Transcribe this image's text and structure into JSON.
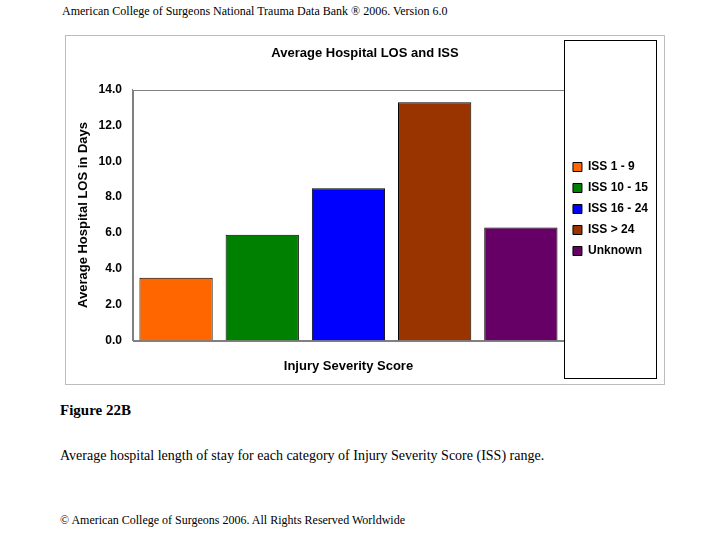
{
  "header": "American College of Surgeons National Trauma Data Bank ® 2006. Version 6.0",
  "chart_data": {
    "type": "bar",
    "title": "Average Hospital LOS and ISS",
    "x_label": "Injury Severity Score",
    "y_label": "Average Hospital LOS in Days",
    "categories": [
      "ISS 1 - 9",
      "ISS 10 - 15",
      "ISS 16 - 24",
      "ISS > 24",
      "Unknown"
    ],
    "values": [
      3.5,
      5.9,
      8.5,
      13.3,
      6.3
    ],
    "colors": [
      "#ff6600",
      "#008000",
      "#0000ff",
      "#993300",
      "#660066"
    ],
    "ylim": [
      0,
      14
    ],
    "yticks": [
      {
        "value": 0,
        "label": "0.0"
      },
      {
        "value": 2,
        "label": "2.0"
      },
      {
        "value": 4,
        "label": "4.0"
      },
      {
        "value": 6,
        "label": "6.0"
      },
      {
        "value": 8,
        "label": "8.0"
      },
      {
        "value": 10,
        "label": "10.0"
      },
      {
        "value": 12,
        "label": "12.0"
      },
      {
        "value": 14,
        "label": "14.0"
      }
    ],
    "grid": false,
    "legend": "right",
    "tick_labels": "y"
  },
  "figure_label": "Figure 22B",
  "caption": "Average hospital length of stay for each category of Injury Severity Score (ISS) range.",
  "copyright": "© American College of Surgeons 2006. All Rights Reserved Worldwide"
}
